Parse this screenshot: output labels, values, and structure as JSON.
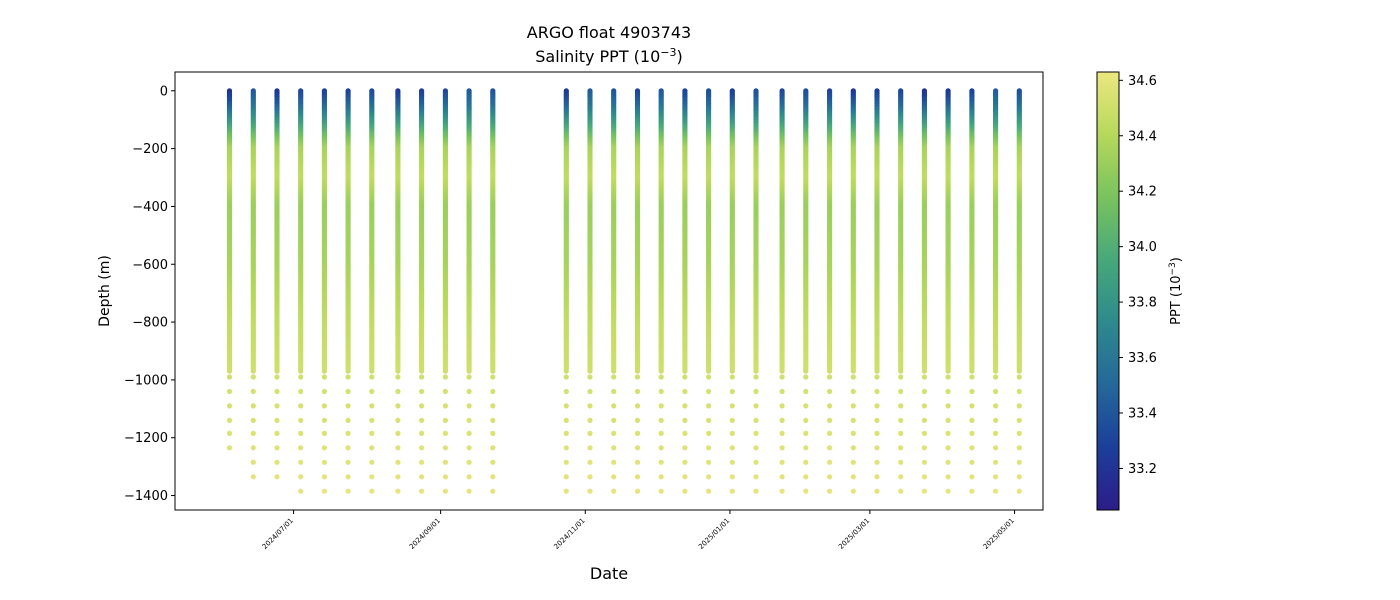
{
  "chart_data": {
    "type": "scatter",
    "title": "ARGO float 4903743",
    "subtitle_prefix": "Salinity PPT (10",
    "subtitle_exp": "−3",
    "subtitle_suffix": ")",
    "xlabel": "Date",
    "ylabel": "Depth (m)",
    "colorbar_label_prefix": "PPT (10",
    "colorbar_label_exp": "−3",
    "colorbar_label_suffix": ")",
    "xlim": [
      "2024-05-12",
      "2025-05-13"
    ],
    "ylim": [
      -1450,
      65
    ],
    "x_tick_labels": [
      "2024/07/01",
      "2024/09/01",
      "2024/11/01",
      "2025/01/01",
      "2025/03/01",
      "2025/05/01"
    ],
    "x_tick_dates": [
      "2024-07-01",
      "2024-09-01",
      "2024-11-01",
      "2025-01-01",
      "2025-03-01",
      "2025-05-01"
    ],
    "y_ticks": [
      0,
      -200,
      -400,
      -600,
      -800,
      -1000,
      -1200,
      -1400
    ],
    "y_tick_labels": [
      "0",
      "−200",
      "−400",
      "−600",
      "−800",
      "−1000",
      "−1200",
      "−1400"
    ],
    "colorbar_ticks": [
      33.2,
      33.4,
      33.6,
      33.8,
      34.0,
      34.2,
      34.4,
      34.6
    ],
    "colorbar_tick_labels": [
      "33.2",
      "33.4",
      "33.6",
      "33.8",
      "34.0",
      "34.2",
      "34.4",
      "34.6"
    ],
    "color_range": [
      33.05,
      34.63
    ],
    "colormap": [
      "#2c1d87",
      "#1c3f9a",
      "#24689a",
      "#2e8a8c",
      "#47a87a",
      "#79c35e",
      "#b6d85c",
      "#ece780"
    ],
    "profile_dates": [
      "2024-06-04",
      "2024-06-14",
      "2024-06-24",
      "2024-07-04",
      "2024-07-14",
      "2024-07-24",
      "2024-08-03",
      "2024-08-14",
      "2024-08-24",
      "2024-09-03",
      "2024-09-13",
      "2024-09-23",
      "2024-10-24",
      "2024-11-03",
      "2024-11-13",
      "2024-11-23",
      "2024-12-03",
      "2024-12-13",
      "2024-12-23",
      "2025-01-02",
      "2025-01-12",
      "2025-01-23",
      "2025-02-02",
      "2025-02-12",
      "2025-02-22",
      "2025-03-04",
      "2025-03-14",
      "2025-03-24",
      "2025-04-03",
      "2025-04-13",
      "2025-04-23",
      "2025-05-03"
    ],
    "deep_depths": [
      -990,
      -1040,
      -1090,
      -1140,
      -1185,
      -1235,
      -1285,
      -1335,
      -1385
    ],
    "profile_max_depth": [
      -1240,
      -1335,
      -1335,
      -1385,
      -1385,
      -1385,
      -1385,
      -1385,
      -1385,
      -1385,
      -1385,
      -1385,
      -1385,
      -1385,
      -1385,
      -1385,
      -1385,
      -1385,
      -1385,
      -1385,
      -1385,
      -1385,
      -1385,
      -1385,
      -1385,
      -1385,
      -1385,
      -1385,
      -1385,
      -1385,
      -1385,
      -1385
    ],
    "salinity_profile": [
      {
        "depth": 0,
        "value": 33.3
      },
      {
        "depth": -50,
        "value": 33.5
      },
      {
        "depth": -100,
        "value": 33.8
      },
      {
        "depth": -150,
        "value": 34.1
      },
      {
        "depth": -200,
        "value": 34.35
      },
      {
        "depth": -300,
        "value": 34.45
      },
      {
        "depth": -400,
        "value": 34.3
      },
      {
        "depth": -600,
        "value": 34.35
      },
      {
        "depth": -800,
        "value": 34.45
      },
      {
        "depth": -1000,
        "value": 34.52
      },
      {
        "depth": -1400,
        "value": 34.6
      }
    ]
  }
}
